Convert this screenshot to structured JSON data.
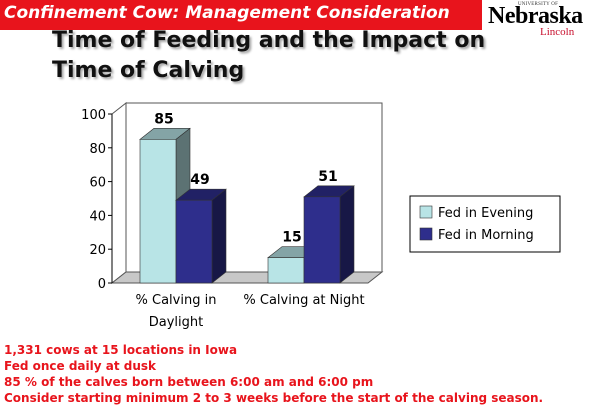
{
  "banner": {
    "text": "Confinement Cow: Management Consideration"
  },
  "logo": {
    "university_of": "UNIVERSITY OF",
    "name": "Nebraska",
    "campus": "Lincoln"
  },
  "slide": {
    "title_line1": "Time of Feeding and the Impact on",
    "title_line2": "Time of Calving"
  },
  "notes": [
    "1,331 cows at 15 locations in Iowa",
    "Fed once daily at dusk",
    "85 % of the calves born between 6:00 am and 6:00 pm",
    "Consider starting minimum 2 to 3 weeks before the start of the calving season."
  ],
  "colors": {
    "banner": "#e8141c",
    "evening": "#b8e4e6",
    "morning": "#2e2e8c",
    "notes": "#e8141c"
  },
  "chart_data": {
    "type": "bar",
    "categories": [
      [
        "% Calving in",
        "Daylight"
      ],
      [
        "% Calving at Night"
      ]
    ],
    "series": [
      {
        "name": "Fed in Evening",
        "values": [
          85,
          15
        ],
        "color": "#b8e4e6"
      },
      {
        "name": "Fed in Morning",
        "values": [
          49,
          51
        ],
        "color": "#2e2e8c"
      }
    ],
    "ylim": [
      0,
      100
    ],
    "yticks": [
      0,
      20,
      40,
      60,
      80,
      100
    ],
    "legend": "right",
    "grid": false,
    "bar_style": "3d"
  }
}
